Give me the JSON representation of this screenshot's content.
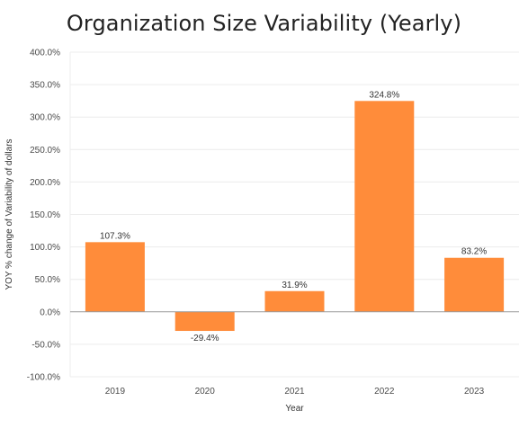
{
  "chart_data": {
    "type": "bar",
    "title": "Organization Size Variability (Yearly)",
    "xlabel": "Year",
    "ylabel": "YOY % change of Variability of dollars",
    "categories": [
      "2019",
      "2020",
      "2021",
      "2022",
      "2023"
    ],
    "values": [
      107.3,
      -29.4,
      31.9,
      324.8,
      83.2
    ],
    "data_labels": [
      "107.3%",
      "-29.4%",
      "31.9%",
      "324.8%",
      "83.2%"
    ],
    "ylim": [
      -100,
      400
    ],
    "yticks": [
      -100,
      -50,
      0,
      50,
      100,
      150,
      200,
      250,
      300,
      350,
      400
    ],
    "ytick_labels": [
      "-100.0%",
      "-50.0%",
      "0.0%",
      "50.0%",
      "100.0%",
      "150.0%",
      "200.0%",
      "250.0%",
      "300.0%",
      "350.0%",
      "400.0%"
    ],
    "grid": true,
    "bar_color": "#FF8C3A",
    "grid_color": "#ECECEC",
    "zero_line_color": "#9A9A9A"
  }
}
